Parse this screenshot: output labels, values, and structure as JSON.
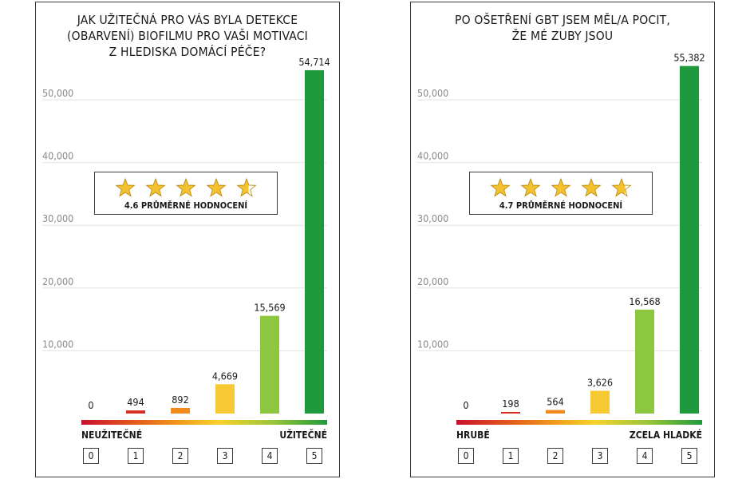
{
  "charts": [
    {
      "title": "JAK UŽITEČNÁ PRO VÁS BYLA DETEKCE\n(OBARVENÍ) BIOFILMU PRO VAŠI MOTIVACI\nZ HLEDISKA DOMÁCÍ PÉČE?",
      "rating_label": "4.6 PRŮMĚRNÉ HODNOCENÍ",
      "stars": [
        1,
        1,
        1,
        1,
        0.6
      ],
      "left_label": "NEUŽITEČNÉ",
      "right_label": "UŽITEČNÉ"
    },
    {
      "title": "PO OŠETŘENÍ GBT JSEM MĚL/A POCIT,\nŽE MÉ ZUBY JSOU",
      "rating_label": "4.7 PRŮMĚRNÉ HODNOCENÍ",
      "stars": [
        1,
        1,
        1,
        1,
        0.7
      ],
      "left_label": "HRUBÉ",
      "right_label": "ZCELA HLADKÉ"
    }
  ],
  "colors": {
    "bar_0": "#c8102e",
    "bar_1": "#d62c1e",
    "bar_2": "#f08a1c",
    "bar_3": "#f7c934",
    "bar_4": "#8dc63f",
    "bar_5": "#1e9a3c",
    "star": "#f2c230",
    "star_outline": "#b8860b"
  },
  "chart_data": [
    {
      "type": "bar",
      "title": "JAK UŽITEČNÁ PRO VÁS BYLA DETEKCE (OBARVENÍ) BIOFILMU PRO VAŠI MOTIVACI Z HLEDISKA DOMÁCÍ PÉČE?",
      "categories": [
        "0",
        "1",
        "2",
        "3",
        "4",
        "5"
      ],
      "values": [
        0,
        494,
        892,
        4669,
        15569,
        54714
      ],
      "value_labels": [
        "0",
        "494",
        "892",
        "4,669",
        "15,569",
        "54,714"
      ],
      "yticks": [
        "10,000",
        "20,000",
        "30,000",
        "40,000",
        "50,000"
      ],
      "ytick_values": [
        10000,
        20000,
        30000,
        40000,
        50000
      ],
      "ylim": [
        0,
        55000
      ],
      "grid": true
    },
    {
      "type": "bar",
      "title": "PO OŠETŘENÍ GBT JSEM MĚL/A POCIT, ŽE MÉ ZUBY JSOU",
      "categories": [
        "0",
        "1",
        "2",
        "3",
        "4",
        "5"
      ],
      "values": [
        0,
        198,
        564,
        3626,
        16568,
        55382
      ],
      "value_labels": [
        "0",
        "198",
        "564",
        "3,626",
        "16,568",
        "55,382"
      ],
      "yticks": [
        "10,000",
        "20,000",
        "30,000",
        "40,000",
        "50,000"
      ],
      "ytick_values": [
        10000,
        20000,
        30000,
        40000,
        50000
      ],
      "ylim": [
        0,
        55000
      ],
      "grid": true
    }
  ]
}
